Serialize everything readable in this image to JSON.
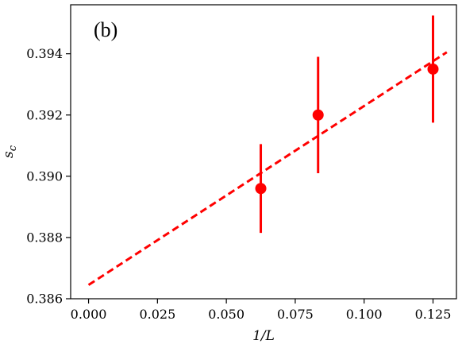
{
  "chart_data": {
    "type": "scatter",
    "panel_label": "(b)",
    "xlabel": "1/L",
    "ylabel": "s_c",
    "xlim": [
      -0.0065,
      0.1335
    ],
    "ylim": [
      0.386,
      0.3956
    ],
    "x_ticks": [
      0.0,
      0.025,
      0.05,
      0.075,
      0.1,
      0.125
    ],
    "x_tick_labels": [
      "0.000",
      "0.025",
      "0.050",
      "0.075",
      "0.100",
      "0.125"
    ],
    "y_ticks": [
      0.386,
      0.388,
      0.39,
      0.392,
      0.394
    ],
    "y_tick_labels": [
      "0.386",
      "0.388",
      "0.390",
      "0.392",
      "0.394"
    ],
    "grid": false,
    "color": "#ff0000",
    "series": [
      {
        "kind": "points_with_errorbars",
        "x": [
          0.0625,
          0.0833,
          0.125
        ],
        "y": [
          0.3896,
          0.392,
          0.3935
        ],
        "yerr": [
          0.00145,
          0.0019,
          0.00175
        ]
      },
      {
        "kind": "dashed_fit_line",
        "x": [
          0.0,
          0.13
        ],
        "y": [
          0.38645,
          0.39405
        ]
      }
    ]
  }
}
